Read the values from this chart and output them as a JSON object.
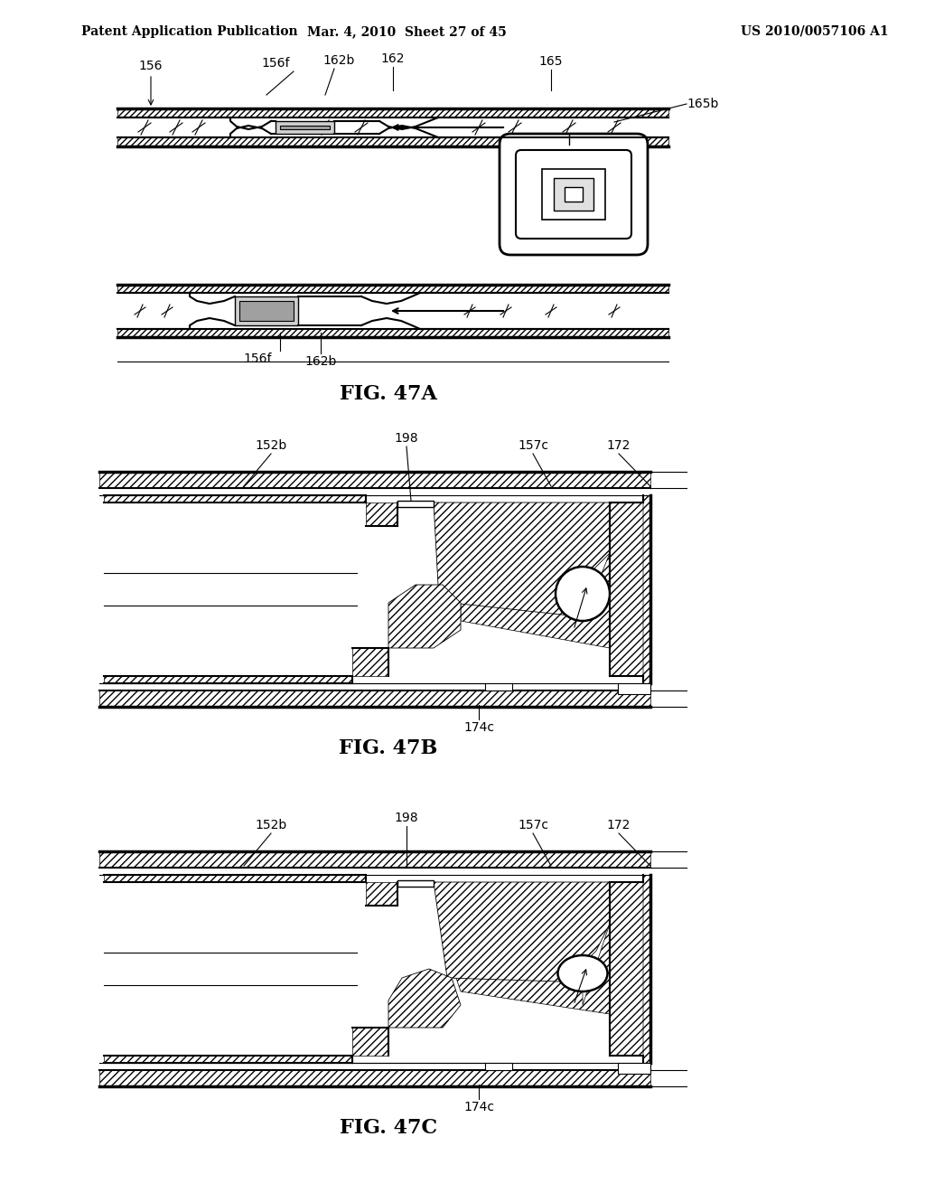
{
  "page_header_left": "Patent Application Publication",
  "page_header_mid": "Mar. 4, 2010  Sheet 27 of 45",
  "page_header_right": "US 2010/0057106 A1",
  "fig47a_title": "FIG. 47A",
  "fig47b_title": "FIG. 47B",
  "fig47c_title": "FIG. 47C",
  "bg_color": "#ffffff",
  "lc": "#000000"
}
